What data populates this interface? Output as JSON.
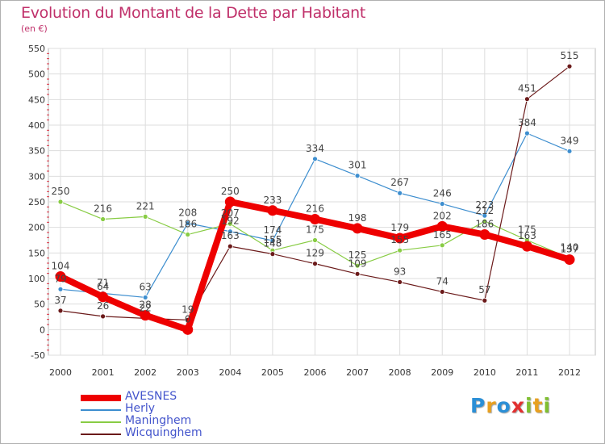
{
  "title": "Evolution du Montant de la Dette par Habitant",
  "subtitle": "(en €)",
  "logo": {
    "text": "Proxiti",
    "letters": [
      {
        "ch": "P",
        "color": "#2b8fd6"
      },
      {
        "ch": "r",
        "color": "#e8a020"
      },
      {
        "ch": "o",
        "color": "#2b8fd6"
      },
      {
        "ch": "x",
        "color": "#e23030"
      },
      {
        "ch": "i",
        "color": "#7fbf30"
      },
      {
        "ch": "t",
        "color": "#e8a020"
      },
      {
        "ch": "i",
        "color": "#7fbf30"
      }
    ]
  },
  "chart_data": {
    "type": "line",
    "title": "Evolution du Montant de la Dette par Habitant",
    "ylabel": "(en €)",
    "xlabel": "",
    "ylim": [
      -50,
      550
    ],
    "yticks": [
      -50,
      0,
      50,
      100,
      150,
      200,
      250,
      300,
      350,
      400,
      450,
      500,
      550
    ],
    "categories": [
      "2000",
      "2001",
      "2002",
      "2003",
      "2004",
      "2005",
      "2006",
      "2007",
      "2008",
      "2009",
      "2010",
      "2011",
      "2012"
    ],
    "grid": true,
    "legend": "bottom-left",
    "series": [
      {
        "name": "AVESNES",
        "color": "#ee0000",
        "width": 8,
        "values": [
          104,
          64,
          28,
          0,
          250,
          233,
          216,
          198,
          179,
          202,
          186,
          163,
          137
        ]
      },
      {
        "name": "Herly",
        "color": "#3d8ecf",
        "width": 1.2,
        "values": [
          79,
          71,
          63,
          208,
          192,
          174,
          334,
          301,
          267,
          246,
          223,
          384,
          349
        ]
      },
      {
        "name": "Maninghem",
        "color": "#88cc44",
        "width": 1.2,
        "values": [
          250,
          216,
          221,
          186,
          207,
          155,
          175,
          125,
          155,
          165,
          212,
          175,
          140
        ]
      },
      {
        "name": "Wicquinghem",
        "color": "#6b1a1a",
        "width": 1.2,
        "values": [
          37,
          26,
          22,
          19,
          163,
          148,
          129,
          109,
          93,
          74,
          57,
          451,
          515
        ]
      }
    ]
  }
}
